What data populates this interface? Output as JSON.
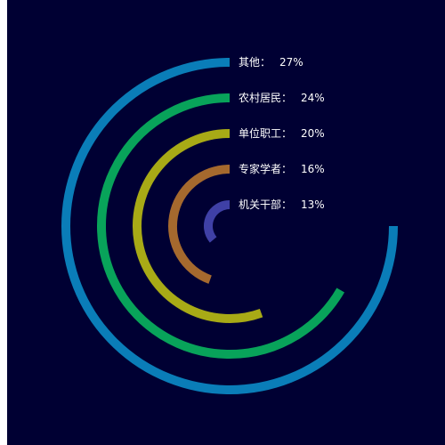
{
  "chart_data": {
    "type": "radial-bar",
    "unit": "%",
    "full_scale": 36,
    "categories": [
      "其他",
      "农村居民",
      "单位职工",
      "专家学者",
      "机关干部"
    ],
    "values": [
      27,
      24,
      20,
      16,
      13
    ],
    "colors": [
      "#0a7db8",
      "#08a35a",
      "#a8aa16",
      "#a5692e",
      "#3f40a6"
    ],
    "label_separator": "：",
    "legend": "left of ring starts, top to bottom"
  }
}
